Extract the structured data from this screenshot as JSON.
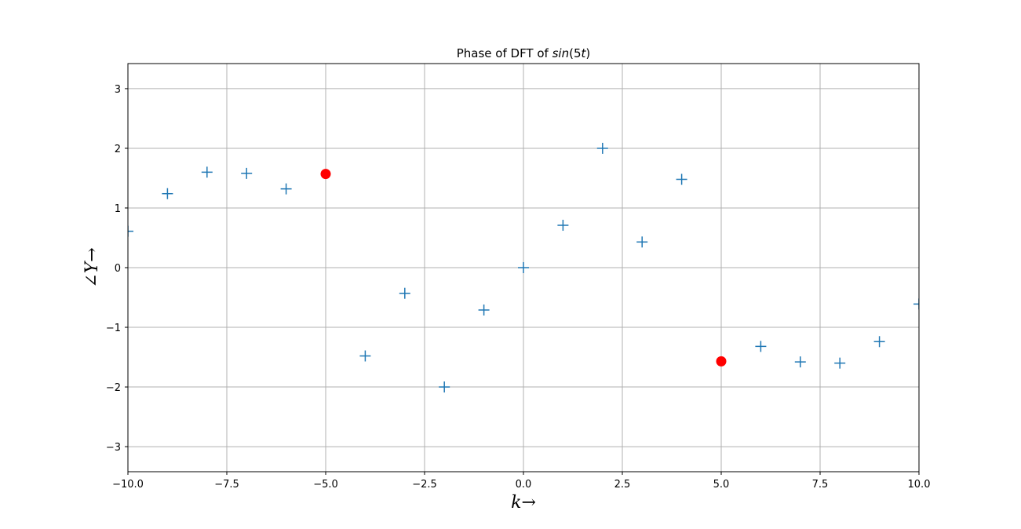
{
  "chart_data": {
    "type": "scatter",
    "title": "Phase of DFT of sin(5t)",
    "xlabel": "k→",
    "ylabel": "∠Y→",
    "xlim": [
      -10,
      10
    ],
    "ylim": [
      -3.42,
      3.42
    ],
    "grid": true,
    "x_ticks": [
      -10,
      -7.5,
      -5,
      -2.5,
      0,
      2.5,
      5,
      7.5,
      10
    ],
    "x_tick_labels": [
      "−10.0",
      "−7.5",
      "−5.0",
      "−2.5",
      "0.0",
      "2.5",
      "5.0",
      "7.5",
      "10.0"
    ],
    "y_ticks": [
      -3,
      -2,
      -1,
      0,
      1,
      2,
      3
    ],
    "y_tick_labels": [
      "−3",
      "−2",
      "−1",
      "0",
      "1",
      "2",
      "3"
    ],
    "series": [
      {
        "marker": "plus",
        "color": "#1f77b4",
        "points": [
          [
            -10,
            0.61
          ],
          [
            -9,
            1.24
          ],
          [
            -8,
            1.6
          ],
          [
            -7,
            1.58
          ],
          [
            -6,
            1.32
          ],
          [
            -4,
            -1.48
          ],
          [
            -3,
            -0.43
          ],
          [
            -2,
            -2.0
          ],
          [
            -1,
            -0.71
          ],
          [
            0,
            0.0
          ],
          [
            1,
            0.71
          ],
          [
            2,
            2.0
          ],
          [
            3,
            0.43
          ],
          [
            4,
            1.48
          ],
          [
            6,
            -1.32
          ],
          [
            7,
            -1.58
          ],
          [
            8,
            -1.6
          ],
          [
            9,
            -1.24
          ],
          [
            10,
            -0.61
          ]
        ]
      },
      {
        "marker": "circle",
        "color": "#ff0000",
        "points": [
          [
            -5,
            1.57
          ],
          [
            5,
            -1.57
          ]
        ]
      }
    ]
  }
}
